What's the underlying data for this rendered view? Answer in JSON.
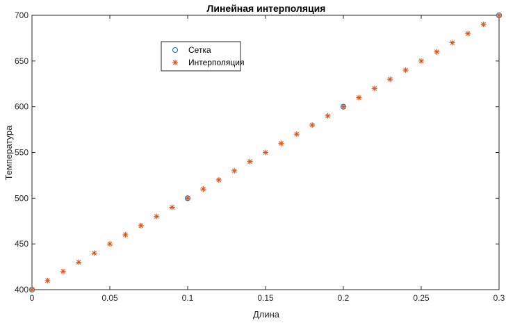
{
  "chart_data": {
    "type": "scatter",
    "title": "Линейная интерполяция",
    "xlabel": "Длина",
    "ylabel": "Температура",
    "xlim": [
      0,
      0.3
    ],
    "ylim": [
      400,
      700
    ],
    "xticks": [
      0,
      0.05,
      0.1,
      0.15,
      0.2,
      0.25,
      0.3
    ],
    "xtick_labels": [
      "0",
      "0.05",
      "0.1",
      "0.15",
      "0.2",
      "0.25",
      "0.3"
    ],
    "yticks": [
      400,
      450,
      500,
      550,
      600,
      650,
      700
    ],
    "ytick_labels": [
      "400",
      "450",
      "500",
      "550",
      "600",
      "650",
      "700"
    ],
    "grid": false,
    "legend_position": "top-left",
    "series": [
      {
        "name": "Сетка",
        "marker": "circle",
        "color": "#0072BD",
        "x": [
          0,
          0.1,
          0.2,
          0.3
        ],
        "y": [
          400,
          500,
          600,
          700
        ]
      },
      {
        "name": "Интерполяция",
        "marker": "asterisk",
        "color": "#D95319",
        "x": [
          0,
          0.01,
          0.02,
          0.03,
          0.04,
          0.05,
          0.06,
          0.07,
          0.08,
          0.09,
          0.1,
          0.11,
          0.12,
          0.13,
          0.14,
          0.15,
          0.16,
          0.17,
          0.18,
          0.19,
          0.2,
          0.21,
          0.22,
          0.23,
          0.24,
          0.25,
          0.26,
          0.27,
          0.28,
          0.29,
          0.3
        ],
        "y": [
          400,
          410,
          420,
          430,
          440,
          450,
          460,
          470,
          480,
          490,
          500,
          510,
          520,
          530,
          540,
          550,
          560,
          570,
          580,
          590,
          600,
          610,
          620,
          630,
          640,
          650,
          660,
          670,
          680,
          690,
          700
        ]
      }
    ]
  }
}
